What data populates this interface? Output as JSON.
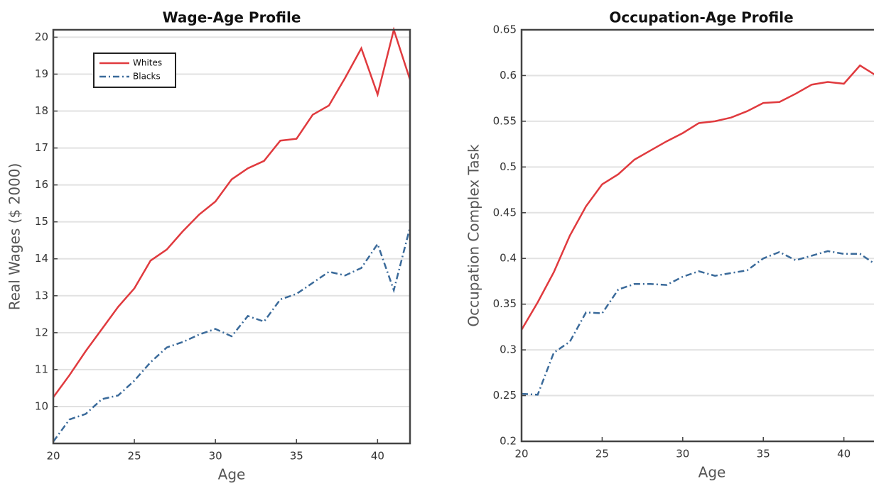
{
  "chart_data": [
    {
      "type": "line",
      "title": "Wage-Age Profile",
      "x_label": "Age",
      "y_label": "Real Wages ($ 2000)",
      "x": [
        20,
        21,
        22,
        23,
        24,
        25,
        26,
        27,
        28,
        29,
        30,
        31,
        32,
        33,
        34,
        35,
        36,
        37,
        38,
        39,
        40,
        41,
        42
      ],
      "series": [
        {
          "name": "Whites",
          "color": "#e03a3e",
          "linestyle": "solid",
          "values": [
            10.25,
            10.85,
            11.5,
            12.1,
            12.7,
            13.2,
            13.95,
            14.25,
            14.75,
            15.2,
            15.55,
            16.15,
            16.45,
            16.65,
            17.2,
            17.25,
            17.9,
            18.15,
            18.9,
            19.7,
            18.45,
            20.2,
            18.85
          ]
        },
        {
          "name": "Blacks",
          "color": "#3a6a9a",
          "linestyle": "dashdot",
          "values": [
            9.05,
            9.65,
            9.8,
            10.2,
            10.3,
            10.7,
            11.2,
            11.6,
            11.75,
            11.95,
            12.1,
            11.9,
            12.45,
            12.3,
            12.9,
            13.05,
            13.35,
            13.65,
            13.55,
            13.75,
            14.4,
            13.15,
            14.85
          ]
        }
      ],
      "xlim": [
        20,
        42
      ],
      "xticks": [
        20,
        25,
        30,
        35,
        40
      ],
      "ylim": [
        9,
        20.2
      ],
      "yticks": [
        10,
        11,
        12,
        13,
        14,
        15,
        16,
        17,
        18,
        19,
        20
      ],
      "grid": true,
      "legend": "upper left"
    },
    {
      "type": "line",
      "title": "Occupation-Age Profile",
      "x_label": "Age",
      "y_label": "Occupation Complex Task",
      "x": [
        20,
        21,
        22,
        23,
        24,
        25,
        26,
        27,
        28,
        29,
        30,
        31,
        32,
        33,
        34,
        35,
        36,
        37,
        38,
        39,
        40,
        41,
        42
      ],
      "series": [
        {
          "color": "#e03a3e",
          "linestyle": "solid",
          "values": [
            0.322,
            0.352,
            0.385,
            0.425,
            0.457,
            0.481,
            0.492,
            0.508,
            0.518,
            0.528,
            0.537,
            0.548,
            0.55,
            0.554,
            0.561,
            0.57,
            0.571,
            0.58,
            0.59,
            0.593,
            0.591,
            0.611,
            0.6
          ]
        },
        {
          "color": "#3a6a9a",
          "linestyle": "dashdot",
          "values": [
            0.252,
            0.251,
            0.297,
            0.309,
            0.341,
            0.34,
            0.366,
            0.372,
            0.372,
            0.371,
            0.38,
            0.386,
            0.381,
            0.384,
            0.387,
            0.4,
            0.407,
            0.398,
            0.403,
            0.408,
            0.405,
            0.405,
            0.393
          ]
        }
      ],
      "xlim": [
        20,
        42
      ],
      "xticks": [
        20,
        25,
        30,
        35,
        40
      ],
      "ylim": [
        0.2,
        0.65
      ],
      "yticks": [
        0.2,
        0.25,
        0.3,
        0.35,
        0.4,
        0.45,
        0.5,
        0.55,
        0.6,
        0.65
      ],
      "grid": true
    }
  ]
}
